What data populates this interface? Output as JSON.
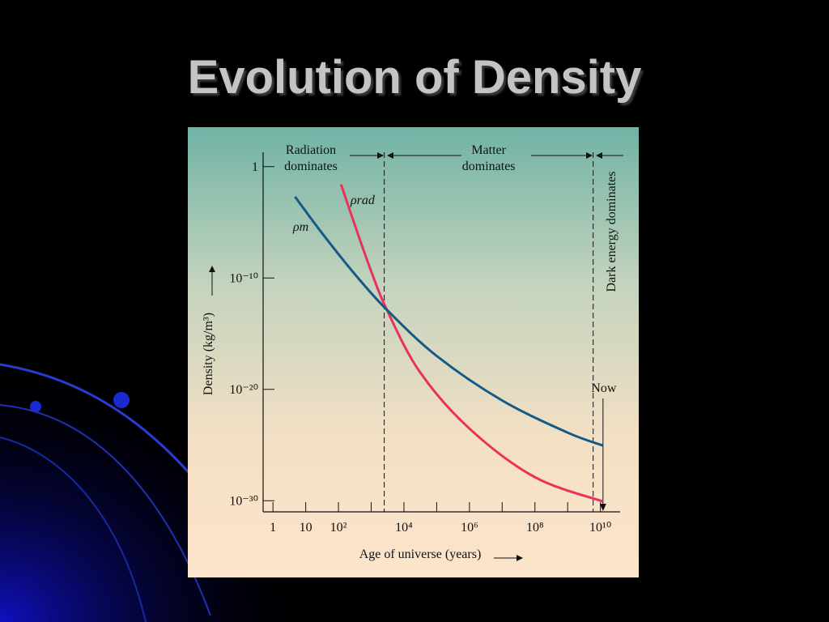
{
  "title": "Evolution of Density",
  "chart_data": {
    "type": "line",
    "xlabel": "Age of universe (years)",
    "ylabel": "Density (kg/m³)",
    "xscale": "log",
    "yscale": "log",
    "xlim": [
      0.5,
      40000000000
    ],
    "ylim": [
      1e-31,
      10
    ],
    "xticks": [
      1,
      10,
      {
        "value": 100,
        "label": "10²"
      },
      {
        "value": 10000,
        "label": "10⁴"
      },
      {
        "value": 1000000,
        "label": "10⁶"
      },
      {
        "value": 100000000,
        "label": "10⁸"
      },
      {
        "value": 10000000000,
        "label": "10¹⁰"
      }
    ],
    "xminor_ticks": [
      1000,
      100000,
      10000000,
      1000000000
    ],
    "yticks": [
      1,
      {
        "value": 1e-10,
        "label": "10⁻¹⁰"
      },
      {
        "value": 1e-20,
        "label": "10⁻²⁰"
      },
      {
        "value": 1e-30,
        "label": "10⁻³⁰"
      }
    ],
    "series": [
      {
        "name": "ρrad",
        "color": "#e8325a",
        "x": [
          120,
          330,
          1000,
          3000,
          30000,
          1000000,
          100000000,
          12000000000
        ],
        "values": [
          0.025,
          4e-06,
          4e-10,
          1.4e-13,
          4e-19,
          3e-24,
          1.3e-28,
          8.5e-31
        ]
      },
      {
        "name": "ρm",
        "color": "#155a86",
        "x": [
          4.7,
          34,
          330,
          3000,
          100000,
          10000000,
          1000000000,
          12000000000
        ],
        "values": [
          0.002,
          8e-07,
          1.9e-10,
          1.4e-13,
          1e-17,
          1e-21,
          1.3e-24,
          9e-26
        ]
      }
    ],
    "era_boundaries": [
      2500,
      6000000000
    ],
    "annotations": {
      "radiation": "Radiation dominates",
      "matter": "Matter dominates",
      "dark_energy": "Dark energy dominates",
      "now": "Now"
    },
    "now_x": 12000000000
  }
}
